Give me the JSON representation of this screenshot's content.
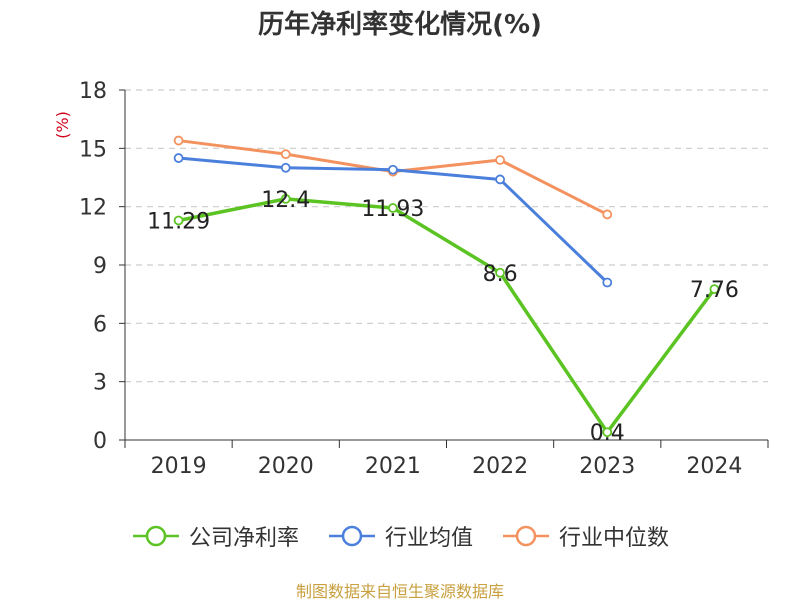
{
  "chart_data": {
    "type": "line",
    "title": "历年净利率变化情况(%)",
    "ylabel": "(%)",
    "xlabel": "",
    "categories": [
      "2019",
      "2020",
      "2021",
      "2022",
      "2023",
      "2024"
    ],
    "ylim": [
      0,
      18
    ],
    "yticks": [
      0,
      3,
      6,
      9,
      12,
      15,
      18
    ],
    "grid": true,
    "legend_position": "bottom",
    "series": [
      {
        "name": "公司净利率",
        "color": "#5bc423",
        "values": [
          11.29,
          12.4,
          11.93,
          8.6,
          0.4,
          7.76
        ],
        "labels": [
          "11.29",
          "12.4",
          "11.93",
          "8.6",
          "0.4",
          "7.76"
        ]
      },
      {
        "name": "行业均值",
        "color": "#4b7fdc",
        "values": [
          14.5,
          14.0,
          13.9,
          13.4,
          8.1,
          null
        ]
      },
      {
        "name": "行业中位数",
        "color": "#f3925f",
        "values": [
          15.4,
          14.7,
          13.8,
          14.4,
          11.6,
          null
        ]
      }
    ]
  },
  "footer": {
    "source": "制图数据来自恒生聚源数据库"
  }
}
